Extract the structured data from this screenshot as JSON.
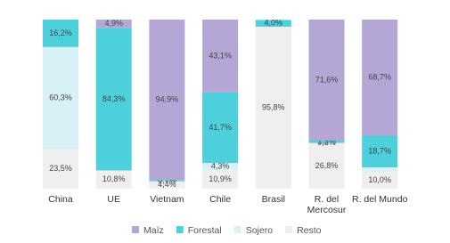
{
  "chart_data": {
    "type": "stacked_bar",
    "categories": [
      "China",
      "UE",
      "Vietnam",
      "Chile",
      "Brasil",
      "R. del Mercosur",
      "R. del Mundo"
    ],
    "series": [
      {
        "name": "Resto",
        "color": "#efefef",
        "values": [
          23.5,
          10.8,
          4.4,
          10.9,
          95.8,
          26.8,
          10.0
        ],
        "value_labels": [
          "23,5%",
          "10,8%",
          "4,4%",
          "10,9%",
          "95,8%",
          "26,8%",
          "10,0%"
        ]
      },
      {
        "name": "Sojero",
        "color": "#d8f1f7",
        "values": [
          60.3,
          0,
          0,
          4.3,
          0,
          0.3,
          2.6
        ],
        "value_labels": [
          "60,3%",
          null,
          null,
          "4,3%",
          null,
          "0,3%",
          null
        ]
      },
      {
        "name": "Forestal",
        "color": "#4dcfdc",
        "values": [
          16.2,
          84.3,
          0.7,
          41.7,
          4.0,
          1.3,
          18.7
        ],
        "value_labels": [
          "16,2%",
          "84,3%",
          "0,7%",
          "41,7%",
          "4,0%",
          "1,3%",
          "18,7%"
        ]
      },
      {
        "name": "Maíz",
        "color": "#b4a7d6",
        "values": [
          0,
          4.9,
          94.9,
          43.1,
          0,
          71.6,
          68.7
        ],
        "value_labels": [
          null,
          "4,9%",
          "94,9%",
          "43,1%",
          null,
          "71,6%",
          "68,7%"
        ]
      }
    ],
    "legend_order": [
      "Maíz",
      "Forestal",
      "Sojero",
      "Resto"
    ]
  }
}
